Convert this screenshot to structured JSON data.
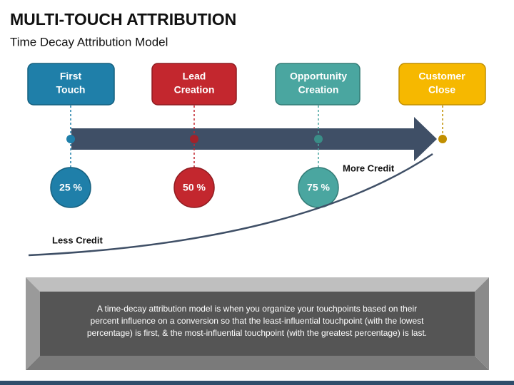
{
  "header": {
    "title": "MULTI-TOUCH ATTRIBUTION",
    "subtitle": "Time Decay Attribution Model"
  },
  "stages": [
    {
      "label": [
        "First",
        "Touch"
      ],
      "credit": "25 %"
    },
    {
      "label": [
        "Lead",
        "Creation"
      ],
      "credit": "50 %"
    },
    {
      "label": [
        "Opportunity",
        "Creation"
      ],
      "credit": "75 %"
    },
    {
      "label": [
        "Customer",
        "Close"
      ]
    }
  ],
  "curve": {
    "high": "More Credit",
    "low": "Less Credit"
  },
  "description": [
    "A time-decay attribution model is when you organize your touchpoints based on their",
    "percent influence on a conversion so that the least-influential touchpoint (with the lowest",
    "percentage) is first, & the most-influential touchpoint (with the greatest percentage) is last."
  ]
}
